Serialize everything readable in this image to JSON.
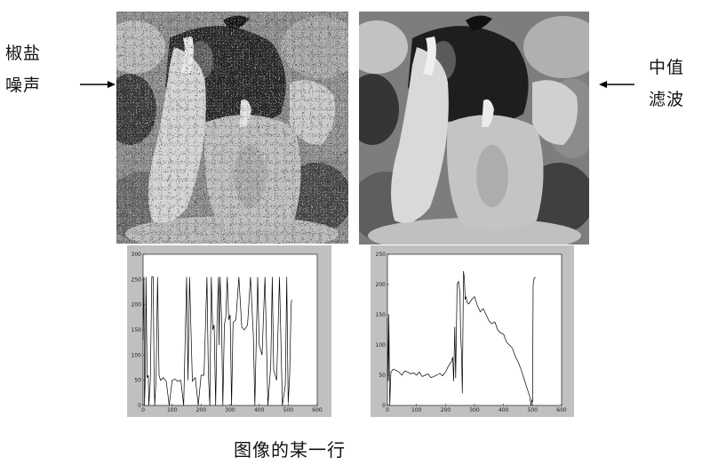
{
  "labels": {
    "left": {
      "line1": "椒盐",
      "line2": "噪声"
    },
    "right": {
      "line1": "中值",
      "line2": "滤波"
    }
  },
  "caption": "图像的某一行",
  "images": {
    "noisy": "peppers image with salt-and-pepper noise",
    "filtered": "peppers image after median filtering"
  },
  "chart_data": [
    {
      "type": "line",
      "xlim": [
        0,
        600
      ],
      "ylim": [
        0,
        300
      ],
      "xticks": [
        "0",
        "100",
        "200",
        "300",
        "400",
        "500",
        "600"
      ],
      "yticks": [
        "0",
        "50",
        "100",
        "150",
        "200",
        "250",
        "300"
      ],
      "series": [
        {
          "x": [
            0,
            3,
            5,
            8,
            10,
            14,
            18,
            20,
            25,
            30,
            35,
            38,
            40,
            45,
            50,
            55,
            60,
            70,
            80,
            90,
            100,
            110,
            120,
            130,
            140,
            150,
            155,
            160,
            170,
            180,
            190,
            200,
            210,
            220,
            225,
            230,
            235,
            240,
            245,
            250,
            255,
            260,
            262,
            265,
            270,
            275,
            280,
            285,
            290,
            295,
            300,
            305,
            310,
            320,
            330,
            340,
            350,
            360,
            370,
            380,
            385,
            390,
            395,
            400,
            410,
            420,
            430,
            440,
            445,
            450,
            460,
            470,
            480,
            490,
            495,
            500,
            505,
            510,
            512
          ],
          "y": [
            130,
            255,
            0,
            60,
            255,
            55,
            60,
            0,
            50,
            255,
            255,
            60,
            0,
            55,
            255,
            60,
            50,
            55,
            48,
            0,
            50,
            52,
            48,
            50,
            0,
            255,
            50,
            255,
            48,
            55,
            0,
            60,
            60,
            255,
            60,
            0,
            255,
            150,
            160,
            0,
            170,
            255,
            120,
            255,
            180,
            0,
            160,
            175,
            255,
            170,
            180,
            0,
            165,
            170,
            255,
            155,
            150,
            160,
            255,
            140,
            0,
            130,
            255,
            120,
            100,
            255,
            0,
            80,
            255,
            70,
            50,
            255,
            0,
            40,
            255,
            5,
            60,
            200,
            210
          ]
        }
      ]
    },
    {
      "type": "line",
      "xlim": [
        0,
        600
      ],
      "ylim": [
        0,
        250
      ],
      "xticks": [
        "0",
        "100",
        "200",
        "300",
        "400",
        "500",
        "600"
      ],
      "yticks": [
        "0",
        "50",
        "100",
        "150",
        "200",
        "250"
      ],
      "series": [
        {
          "x": [
            0,
            3,
            5,
            8,
            12,
            20,
            30,
            40,
            50,
            60,
            70,
            80,
            90,
            100,
            110,
            120,
            130,
            140,
            150,
            160,
            170,
            180,
            190,
            200,
            210,
            220,
            225,
            228,
            232,
            235,
            240,
            245,
            250,
            252,
            255,
            258,
            262,
            265,
            268,
            270,
            275,
            280,
            290,
            300,
            310,
            320,
            330,
            340,
            350,
            360,
            370,
            380,
            390,
            400,
            410,
            420,
            430,
            440,
            450,
            460,
            470,
            480,
            490,
            495,
            498,
            500,
            502,
            505,
            510
          ],
          "y": [
            145,
            40,
            150,
            0,
            55,
            60,
            58,
            55,
            50,
            57,
            55,
            52,
            54,
            50,
            55,
            48,
            50,
            52,
            46,
            48,
            50,
            53,
            49,
            55,
            65,
            72,
            80,
            40,
            130,
            45,
            200,
            205,
            185,
            120,
            90,
            20,
            222,
            210,
            175,
            180,
            170,
            168,
            175,
            180,
            165,
            155,
            160,
            150,
            140,
            135,
            138,
            125,
            120,
            118,
            105,
            100,
            95,
            82,
            72,
            60,
            45,
            30,
            15,
            0,
            10,
            5,
            200,
            210,
            212
          ]
        }
      ]
    }
  ]
}
